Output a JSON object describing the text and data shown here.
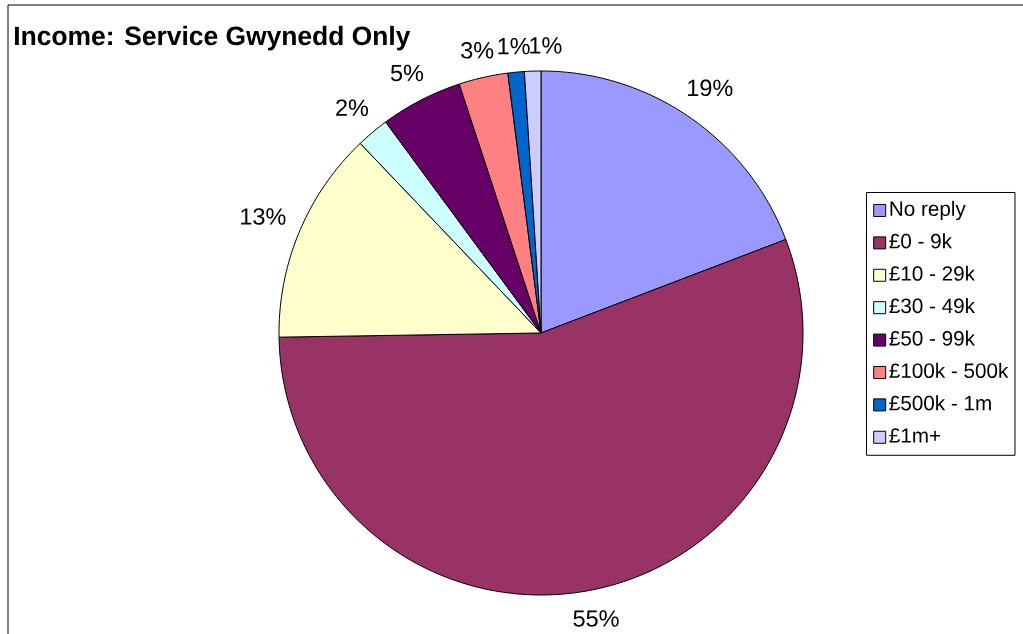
{
  "chart_data": {
    "type": "pie",
    "title": "Income: Service Gwynedd Only",
    "categories": [
      "No reply",
      "£0 - 9k",
      "£10 - 29k",
      "£30 - 49k",
      "£50 - 99k",
      "£100k - 500k",
      "£500k - 1m",
      "£1m+"
    ],
    "values": [
      19,
      55,
      13,
      2,
      5,
      3,
      1,
      1
    ],
    "colors": [
      "#9999ff",
      "#993366",
      "#ffffcc",
      "#ccffff",
      "#660066",
      "#ff8080",
      "#0066cc",
      "#ccccff"
    ],
    "value_labels": [
      "19%",
      "55%",
      "13%",
      "2%",
      "5%",
      "3%",
      "1%",
      "1%"
    ],
    "legend": "right"
  }
}
